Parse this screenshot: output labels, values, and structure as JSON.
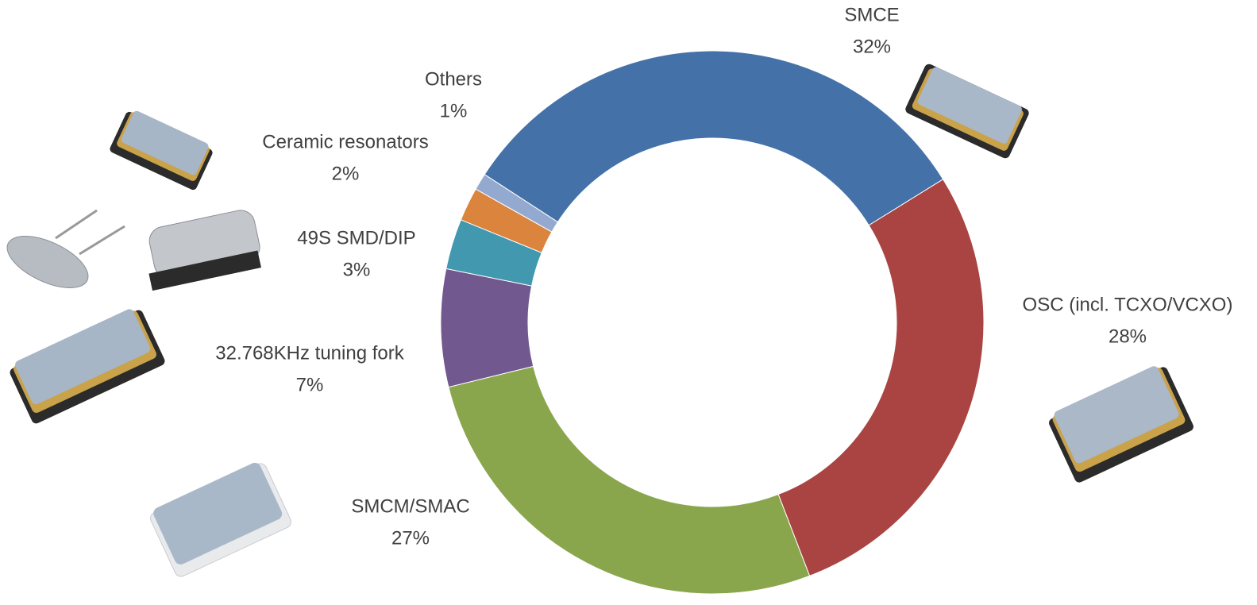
{
  "chart_data": {
    "type": "donut",
    "categories": [
      "SMCE",
      "OSC (incl. TCXO/VCXO)",
      "SMCM/SMAC",
      "32.768KHz tuning fork",
      "49S SMD/DIP",
      "Ceramic resonators",
      "Others"
    ],
    "values": [
      32,
      28,
      27,
      7,
      3,
      2,
      1
    ],
    "value_labels": [
      "32%",
      "28%",
      "27%",
      "7%",
      "3%",
      "2%",
      "1%"
    ],
    "colors": [
      "#4472a8",
      "#a94442",
      "#8aa64c",
      "#71588f",
      "#4198af",
      "#db843d",
      "#93a9cf"
    ]
  }
}
